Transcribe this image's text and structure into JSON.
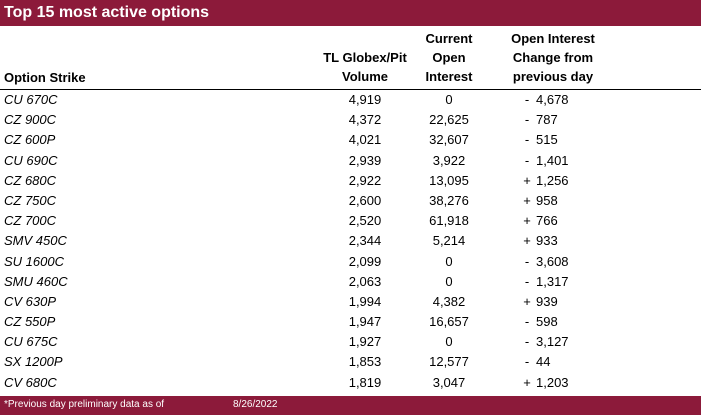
{
  "title": "Top 15 most active options",
  "headers": {
    "strike": "Option Strike",
    "volume": [
      "TL Globex/Pit",
      "Volume"
    ],
    "open_interest": [
      "Current",
      "Open",
      "Interest"
    ],
    "change": [
      "Open Interest",
      "Change from",
      "previous day"
    ]
  },
  "rows": [
    {
      "strike": "CU 670C",
      "volume": "4,919",
      "oi": "0",
      "sign": "-",
      "change": "4,678"
    },
    {
      "strike": "CZ 900C",
      "volume": "4,372",
      "oi": "22,625",
      "sign": "-",
      "change": "787"
    },
    {
      "strike": "CZ 600P",
      "volume": "4,021",
      "oi": "32,607",
      "sign": "-",
      "change": "515"
    },
    {
      "strike": "CU 690C",
      "volume": "2,939",
      "oi": "3,922",
      "sign": "-",
      "change": "1,401"
    },
    {
      "strike": "CZ 680C",
      "volume": "2,922",
      "oi": "13,095",
      "sign": "+",
      "change": "1,256"
    },
    {
      "strike": "CZ 750C",
      "volume": "2,600",
      "oi": "38,276",
      "sign": "+",
      "change": "958"
    },
    {
      "strike": "CZ 700C",
      "volume": "2,520",
      "oi": "61,918",
      "sign": "+",
      "change": "766"
    },
    {
      "strike": "SMV 450C",
      "volume": "2,344",
      "oi": "5,214",
      "sign": "+",
      "change": "933"
    },
    {
      "strike": "SU 1600C",
      "volume": "2,099",
      "oi": "0",
      "sign": "-",
      "change": "3,608"
    },
    {
      "strike": "SMU 460C",
      "volume": "2,063",
      "oi": "0",
      "sign": "-",
      "change": "1,317"
    },
    {
      "strike": "CV 630P",
      "volume": "1,994",
      "oi": "4,382",
      "sign": "+",
      "change": "939"
    },
    {
      "strike": "CZ 550P",
      "volume": "1,947",
      "oi": "16,657",
      "sign": "-",
      "change": "598"
    },
    {
      "strike": "CU 675C",
      "volume": "1,927",
      "oi": "0",
      "sign": "-",
      "change": "3,127"
    },
    {
      "strike": "SX 1200P",
      "volume": "1,853",
      "oi": "12,577",
      "sign": "-",
      "change": "44"
    },
    {
      "strike": "CV 680C",
      "volume": "1,819",
      "oi": "3,047",
      "sign": "+",
      "change": "1,203"
    }
  ],
  "footer": {
    "note": "*Previous day preliminary data as of",
    "date": "8/26/2022"
  }
}
